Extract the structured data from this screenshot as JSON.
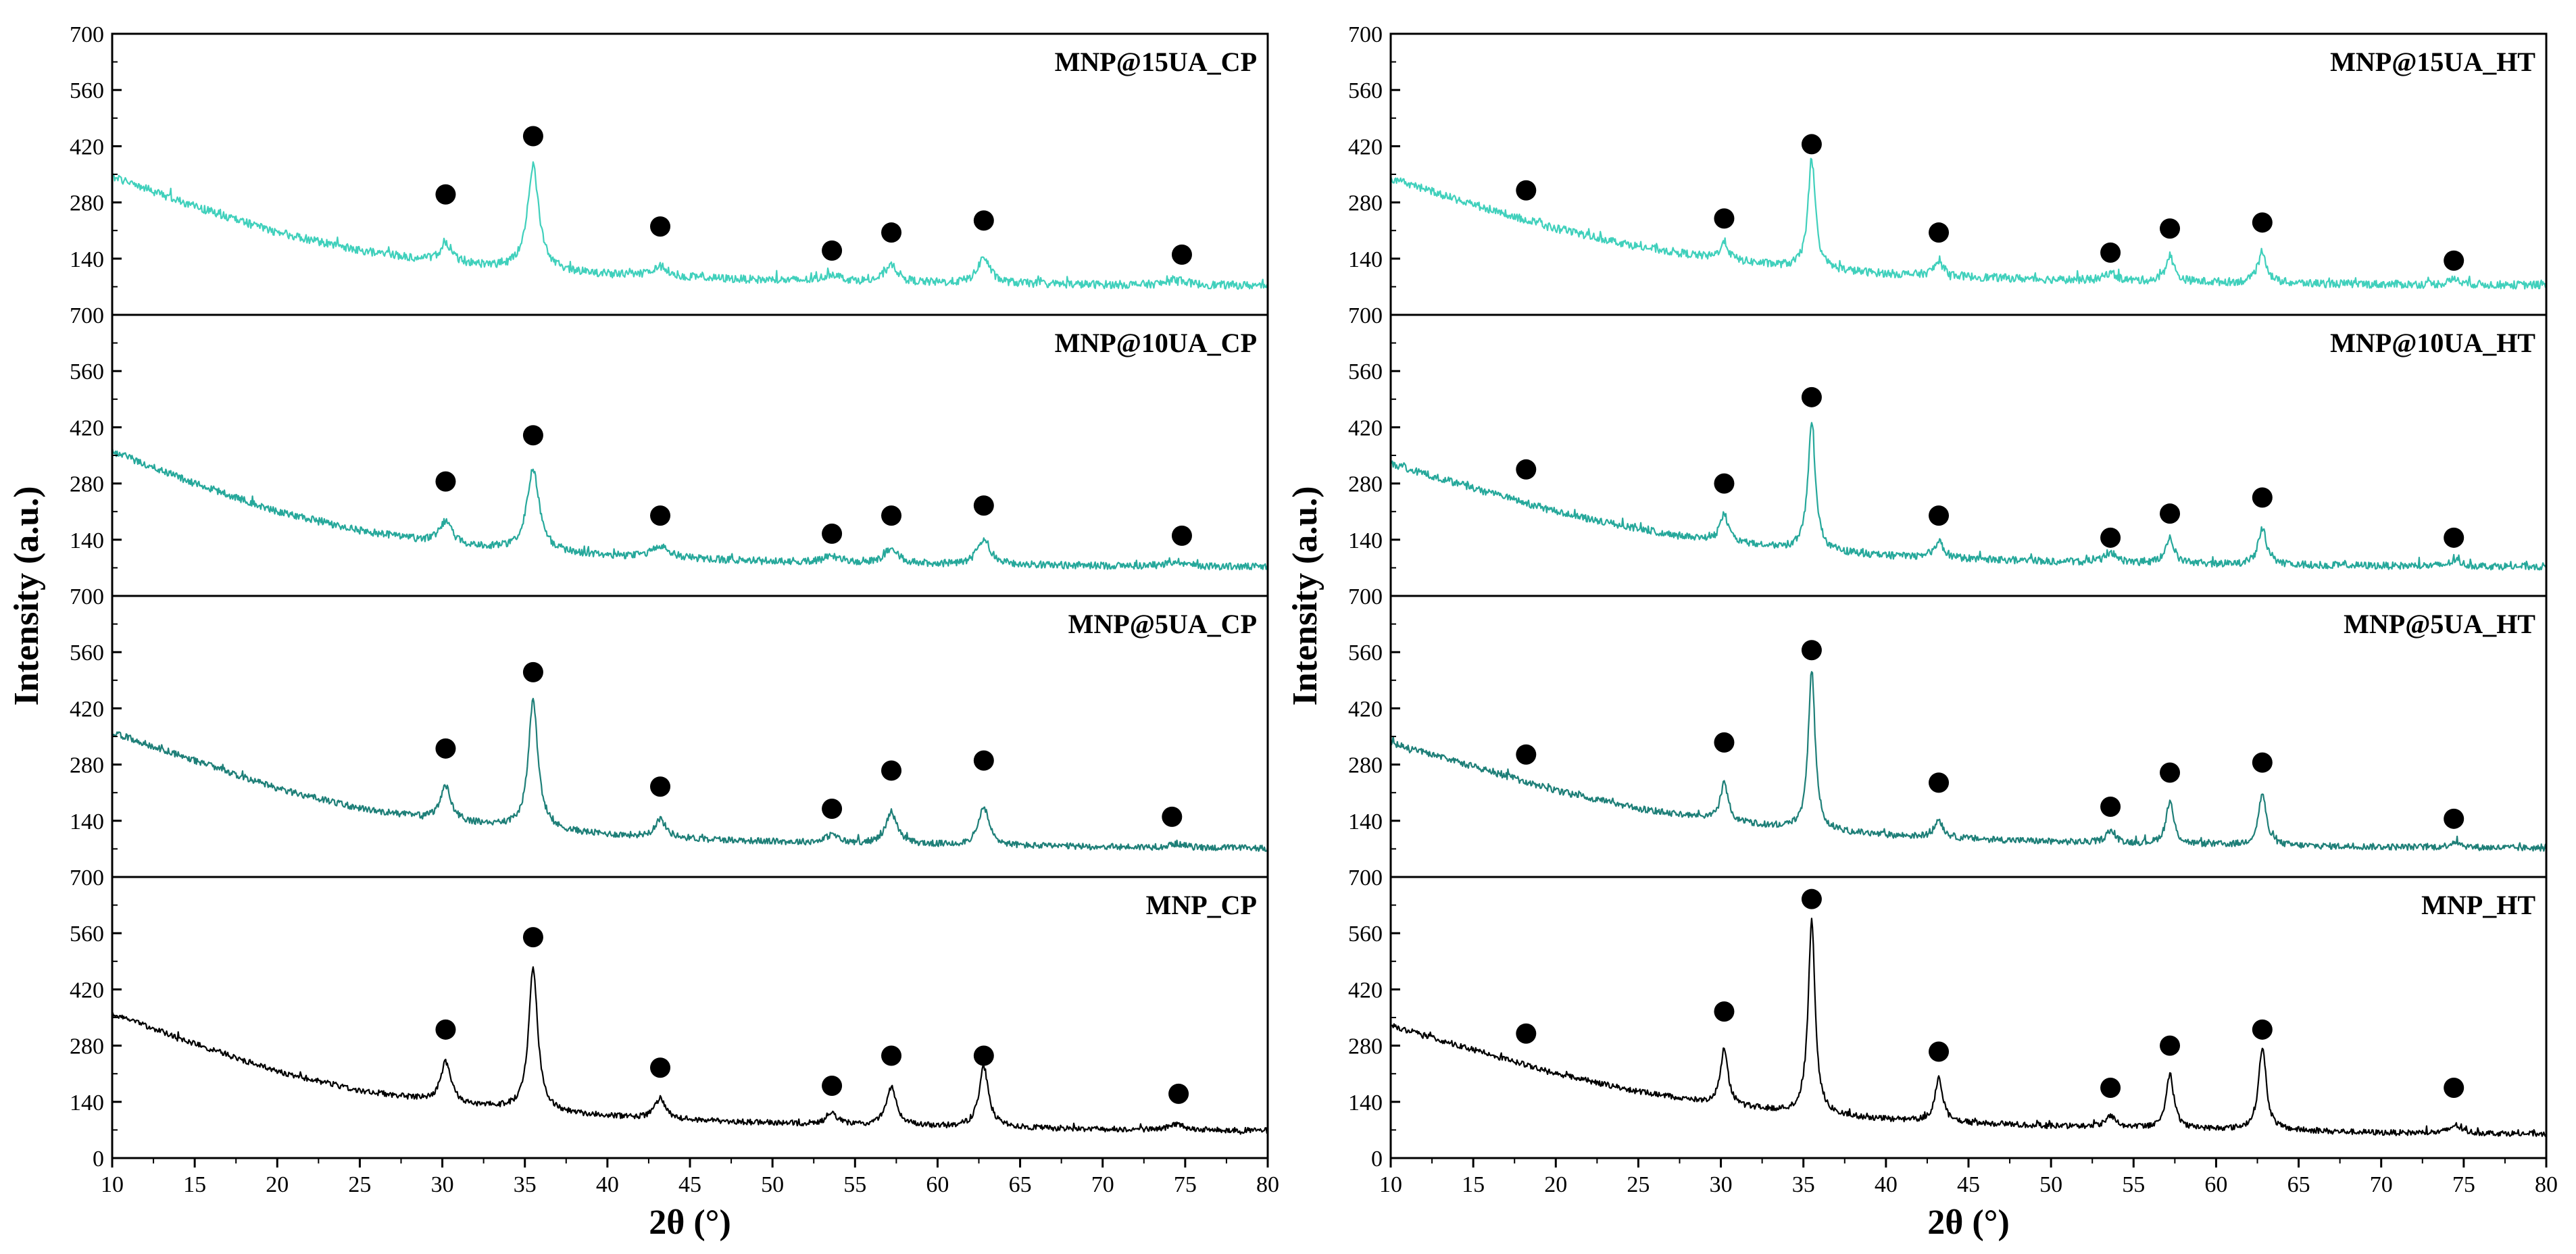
{
  "chart_data": {
    "type": "line",
    "xlabel": "2θ (°)",
    "ylabel": "Intensity (a.u.)",
    "xlim": [
      10,
      80
    ],
    "xticks": [
      10,
      15,
      20,
      25,
      30,
      35,
      40,
      45,
      50,
      55,
      60,
      65,
      70,
      75,
      80
    ],
    "ylim": [
      0,
      700
    ],
    "yticks": [
      0,
      140,
      280,
      420,
      560,
      700
    ],
    "marker_symbol": "●",
    "colors": {
      "UA15": "#40d0bc",
      "UA10": "#26a89b",
      "UA5": "#1e7f78",
      "bare": "#000000"
    },
    "columns": [
      {
        "name": "CP",
        "panels": [
          {
            "label": "MNP@15UA_CP",
            "color_key": "UA15",
            "noise": 10,
            "baseline": {
              "x": [
                10,
                15,
                20,
                25,
                30,
                35,
                40,
                45,
                50,
                55,
                60,
                65,
                70,
                75,
                80
              ],
              "y": [
                345,
                270,
                205,
                160,
                130,
                112,
                100,
                92,
                86,
                82,
                79,
                77,
                75,
                74,
                73
              ]
            },
            "peaks": [
              [
                30.2,
                45,
                0.45
              ],
              [
                35.5,
                260,
                0.42
              ],
              [
                43.2,
                25,
                0.6
              ],
              [
                53.6,
                18,
                0.6
              ],
              [
                57.2,
                45,
                0.45
              ],
              [
                62.8,
                65,
                0.45
              ],
              [
                74.5,
                15,
                0.6
              ]
            ],
            "markers": [
              [
                30.2,
                300
              ],
              [
                35.5,
                445
              ],
              [
                43.2,
                220
              ],
              [
                53.6,
                160
              ],
              [
                57.2,
                205
              ],
              [
                62.8,
                235
              ],
              [
                74.8,
                150
              ]
            ]
          },
          {
            "label": "MNP@10UA_CP",
            "color_key": "UA10",
            "noise": 9,
            "baseline": {
              "x": [
                10,
                15,
                20,
                25,
                30,
                35,
                40,
                45,
                50,
                55,
                60,
                65,
                70,
                75,
                80
              ],
              "y": [
                360,
                280,
                210,
                162,
                130,
                112,
                100,
                92,
                86,
                82,
                79,
                77,
                75,
                74,
                72
              ]
            },
            "peaks": [
              [
                30.2,
                55,
                0.45
              ],
              [
                35.5,
                205,
                0.45
              ],
              [
                43.2,
                30,
                0.6
              ],
              [
                53.6,
                15,
                0.6
              ],
              [
                57.2,
                40,
                0.45
              ],
              [
                62.8,
                65,
                0.45
              ],
              [
                74.5,
                12,
                0.6
              ]
            ],
            "markers": [
              [
                30.2,
                285
              ],
              [
                35.5,
                400
              ],
              [
                43.2,
                200
              ],
              [
                53.6,
                155
              ],
              [
                57.2,
                200
              ],
              [
                62.8,
                225
              ],
              [
                74.8,
                150
              ]
            ]
          },
          {
            "label": "MNP@5UA_CP",
            "color_key": "UA5",
            "noise": 8,
            "baseline": {
              "x": [
                10,
                15,
                20,
                25,
                30,
                35,
                40,
                45,
                50,
                55,
                60,
                65,
                70,
                75,
                80
              ],
              "y": [
                360,
                290,
                220,
                170,
                140,
                120,
                105,
                95,
                88,
                83,
                80,
                77,
                75,
                73,
                72
              ]
            },
            "peaks": [
              [
                30.2,
                85,
                0.4
              ],
              [
                35.5,
                320,
                0.35
              ],
              [
                43.2,
                45,
                0.4
              ],
              [
                53.6,
                20,
                0.45
              ],
              [
                57.2,
                80,
                0.4
              ],
              [
                62.8,
                95,
                0.38
              ],
              [
                74.5,
                10,
                0.5
              ]
            ],
            "markers": [
              [
                30.2,
                320
              ],
              [
                35.5,
                510
              ],
              [
                43.2,
                225
              ],
              [
                53.6,
                170
              ],
              [
                57.2,
                265
              ],
              [
                62.8,
                290
              ],
              [
                74.2,
                150
              ]
            ]
          },
          {
            "label": "MNP_CP",
            "color_key": "bare",
            "noise": 7,
            "baseline": {
              "x": [
                10,
                15,
                20,
                25,
                30,
                35,
                40,
                45,
                50,
                55,
                60,
                65,
                70,
                75,
                80
              ],
              "y": [
                360,
                285,
                215,
                168,
                138,
                118,
                104,
                94,
                87,
                82,
                78,
                75,
                72,
                70,
                68
              ]
            },
            "peaks": [
              [
                30.2,
                100,
                0.38
              ],
              [
                35.5,
                360,
                0.33
              ],
              [
                43.2,
                50,
                0.38
              ],
              [
                53.6,
                25,
                0.42
              ],
              [
                57.2,
                95,
                0.38
              ],
              [
                62.8,
                150,
                0.35
              ],
              [
                74.5,
                15,
                0.5
              ]
            ],
            "markers": [
              [
                30.2,
                320
              ],
              [
                35.5,
                550
              ],
              [
                43.2,
                225
              ],
              [
                53.6,
                180
              ],
              [
                57.2,
                255
              ],
              [
                62.8,
                255
              ],
              [
                74.6,
                160
              ]
            ]
          }
        ]
      },
      {
        "name": "HT",
        "panels": [
          {
            "label": "MNP@15UA_HT",
            "color_key": "UA15",
            "noise": 10,
            "baseline": {
              "x": [
                10,
                15,
                20,
                25,
                30,
                35,
                40,
                45,
                50,
                55,
                60,
                65,
                70,
                75,
                80
              ],
              "y": [
                340,
                275,
                215,
                170,
                138,
                115,
                102,
                94,
                88,
                84,
                81,
                78,
                76,
                75,
                74
              ]
            },
            "peaks": [
              [
                30.2,
                45,
                0.3
              ],
              [
                35.5,
                265,
                0.28
              ],
              [
                43.2,
                35,
                0.35
              ],
              [
                53.6,
                20,
                0.4
              ],
              [
                57.2,
                65,
                0.3
              ],
              [
                62.8,
                80,
                0.3
              ],
              [
                74.5,
                15,
                0.4
              ]
            ],
            "markers": [
              [
                18.2,
                310
              ],
              [
                30.2,
                240
              ],
              [
                35.5,
                425
              ],
              [
                43.2,
                205
              ],
              [
                53.6,
                155
              ],
              [
                57.2,
                215
              ],
              [
                62.8,
                230
              ],
              [
                74.4,
                135
              ]
            ]
          },
          {
            "label": "MNP@10UA_HT",
            "color_key": "UA10",
            "noise": 9,
            "baseline": {
              "x": [
                10,
                15,
                20,
                25,
                30,
                35,
                40,
                45,
                50,
                55,
                60,
                65,
                70,
                75,
                80
              ],
              "y": [
                330,
                268,
                210,
                166,
                135,
                113,
                100,
                92,
                86,
                82,
                79,
                77,
                75,
                74,
                73
              ]
            },
            "peaks": [
              [
                30.2,
                70,
                0.3
              ],
              [
                35.5,
                315,
                0.28
              ],
              [
                43.2,
                40,
                0.35
              ],
              [
                53.6,
                25,
                0.4
              ],
              [
                57.2,
                65,
                0.3
              ],
              [
                62.8,
                90,
                0.3
              ],
              [
                74.5,
                15,
                0.4
              ]
            ],
            "markers": [
              [
                18.2,
                315
              ],
              [
                30.2,
                280
              ],
              [
                35.5,
                495
              ],
              [
                43.2,
                200
              ],
              [
                53.6,
                145
              ],
              [
                57.2,
                205
              ],
              [
                62.8,
                245
              ],
              [
                74.4,
                145
              ]
            ]
          },
          {
            "label": "MNP@5UA_HT",
            "color_key": "UA5",
            "noise": 8,
            "baseline": {
              "x": [
                10,
                15,
                20,
                25,
                30,
                35,
                40,
                45,
                50,
                55,
                60,
                65,
                70,
                75,
                80
              ],
              "y": [
                335,
                275,
                215,
                170,
                140,
                118,
                104,
                95,
                88,
                83,
                80,
                77,
                75,
                73,
                72
              ]
            },
            "peaks": [
              [
                30.2,
                95,
                0.28
              ],
              [
                35.5,
                400,
                0.25
              ],
              [
                43.2,
                45,
                0.3
              ],
              [
                53.6,
                30,
                0.35
              ],
              [
                57.2,
                105,
                0.28
              ],
              [
                62.8,
                130,
                0.28
              ],
              [
                74.5,
                15,
                0.4
              ]
            ],
            "markers": [
              [
                18.2,
                305
              ],
              [
                30.2,
                335
              ],
              [
                35.5,
                565
              ],
              [
                43.2,
                235
              ],
              [
                53.6,
                175
              ],
              [
                57.2,
                260
              ],
              [
                62.8,
                285
              ],
              [
                74.4,
                145
              ]
            ]
          },
          {
            "label": "MNP_HT",
            "color_key": "bare",
            "noise": 7,
            "baseline": {
              "x": [
                10,
                15,
                20,
                25,
                30,
                35,
                40,
                45,
                50,
                55,
                60,
                65,
                70,
                75,
                80
              ],
              "y": [
                330,
                270,
                210,
                165,
                132,
                110,
                96,
                87,
                80,
                75,
                72,
                68,
                63,
                62,
                60
              ]
            },
            "peaks": [
              [
                30.2,
                140,
                0.28
              ],
              [
                35.5,
                485,
                0.25
              ],
              [
                43.2,
                110,
                0.28
              ],
              [
                53.6,
                30,
                0.35
              ],
              [
                57.2,
                135,
                0.28
              ],
              [
                62.8,
                205,
                0.28
              ],
              [
                74.5,
                20,
                0.4
              ]
            ],
            "markers": [
              [
                18.2,
                310
              ],
              [
                30.2,
                365
              ],
              [
                35.5,
                645
              ],
              [
                43.2,
                265
              ],
              [
                53.6,
                175
              ],
              [
                57.2,
                280
              ],
              [
                62.8,
                320
              ],
              [
                74.4,
                175
              ]
            ]
          }
        ]
      }
    ]
  }
}
